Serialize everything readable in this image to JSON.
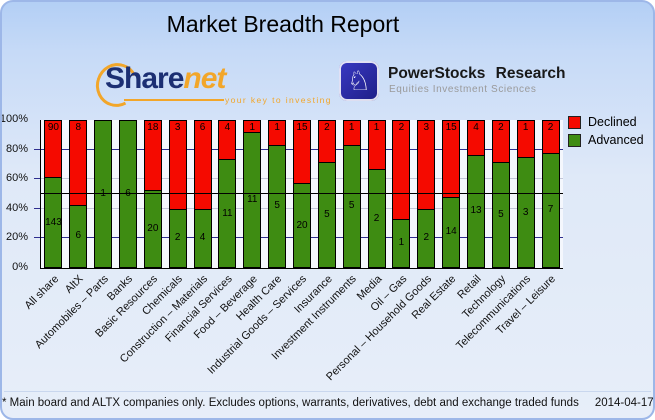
{
  "title": "Market Breadth Report",
  "logos": {
    "sharenet": {
      "share": "Share",
      "net": "net",
      "tagline": "your key to investing"
    },
    "powerstocks": {
      "glyph": "♘",
      "name": "PowerStocks Research",
      "subtitle": "Equities Investment Sciences"
    }
  },
  "legend": {
    "items": [
      {
        "label": "Declined",
        "color": "#f50a00"
      },
      {
        "label": "Advanced",
        "color": "#3e8c12"
      }
    ]
  },
  "chart_data": {
    "type": "bar",
    "stacked": true,
    "title": "Market Breadth Report",
    "value_format": "percent of companies (labels show counts)",
    "categories": [
      "All share",
      "AltX",
      "Automobiles – Parts",
      "Banks",
      "Basic Resources",
      "Chemicals",
      "Construction – Materials",
      "Financial Services",
      "Food – Beverage",
      "Health Care",
      "Industrial Goods – Services",
      "Insurance",
      "Investment Instruments",
      "Media",
      "Oil – Gas",
      "Personal – Household Goods",
      "Real Estate",
      "Retail",
      "Technology",
      "Telecommunications",
      "Travel – Leisure"
    ],
    "series": [
      {
        "name": "Declined",
        "color": "#f50a00",
        "counts": [
          90,
          8,
          0,
          0,
          18,
          3,
          6,
          4,
          1,
          1,
          15,
          2,
          1,
          1,
          2,
          3,
          15,
          4,
          2,
          1,
          2
        ]
      },
      {
        "name": "Advanced",
        "color": "#3e8c12",
        "counts": [
          143,
          6,
          1,
          6,
          20,
          2,
          4,
          11,
          11,
          5,
          20,
          5,
          5,
          2,
          1,
          2,
          14,
          13,
          5,
          3,
          7
        ]
      }
    ],
    "y_axis": {
      "ticks": [
        "0%",
        "20%",
        "40%",
        "60%",
        "80%",
        "100%"
      ],
      "min": 0,
      "max": 100
    },
    "reference_line_pct": 50,
    "gridlines": [
      {
        "pct": 20,
        "style": "navy"
      },
      {
        "pct": 40,
        "style": "gray"
      },
      {
        "pct": 60,
        "style": "gray"
      },
      {
        "pct": 80,
        "style": "navy"
      }
    ],
    "legend_position": "top-right"
  },
  "footer": {
    "note": "* Main board and ALTX companies only. Excludes options, warrants, derivatives, debt and exchange traded funds",
    "date": "2014-04-17"
  }
}
